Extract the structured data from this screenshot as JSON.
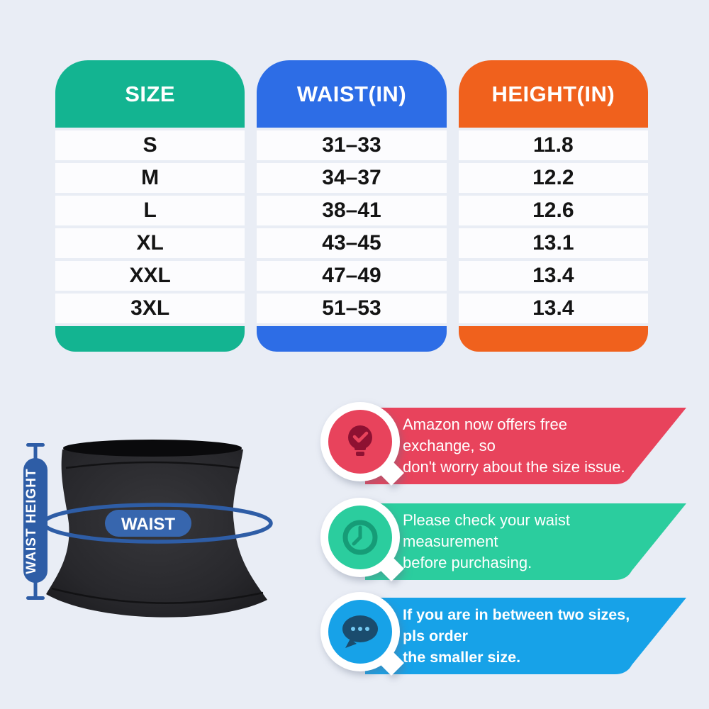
{
  "chart_data": {
    "type": "table",
    "columns": [
      "SIZE",
      "WAIST(IN)",
      "HEIGHT(IN)"
    ],
    "rows": [
      [
        "S",
        "31–33",
        "11.8"
      ],
      [
        "M",
        "34–37",
        "12.2"
      ],
      [
        "L",
        "38–41",
        "12.6"
      ],
      [
        "XL",
        "43–45",
        "13.1"
      ],
      [
        "XXL",
        "47–49",
        "13.4"
      ],
      [
        "3XL",
        "51–53",
        "13.4"
      ]
    ]
  },
  "table": {
    "header_colors": [
      "#13b491",
      "#2d6de6",
      "#f0611d"
    ],
    "row_background": "#fcfcfe"
  },
  "illustration": {
    "height_label": "WAIST HEIGHT",
    "waist_label": "WAIST",
    "accent_color": "#2e5da6",
    "pill_color": "#3766ae",
    "garment_color": "#26262a"
  },
  "callouts": [
    {
      "icon": "lightbulb-check-icon",
      "banner_color": "#e8435c",
      "glyph_color": "#8e1132",
      "lines": [
        "Amazon now offers free exchange, so",
        "don't worry about the size issue."
      ]
    },
    {
      "icon": "clock-icon",
      "banner_color": "#2bcd9e",
      "glyph_color": "#169c77",
      "lines": [
        "Please check your waist measurement",
        "before purchasing."
      ]
    },
    {
      "icon": "chat-dots-icon",
      "banner_color": "#17a2e8",
      "glyph_color": "#1a4c6e",
      "dot_color": "#74c9f1",
      "bold": true,
      "lines": [
        "If you are in between two sizes, pls order",
        "the smaller size."
      ]
    }
  ]
}
